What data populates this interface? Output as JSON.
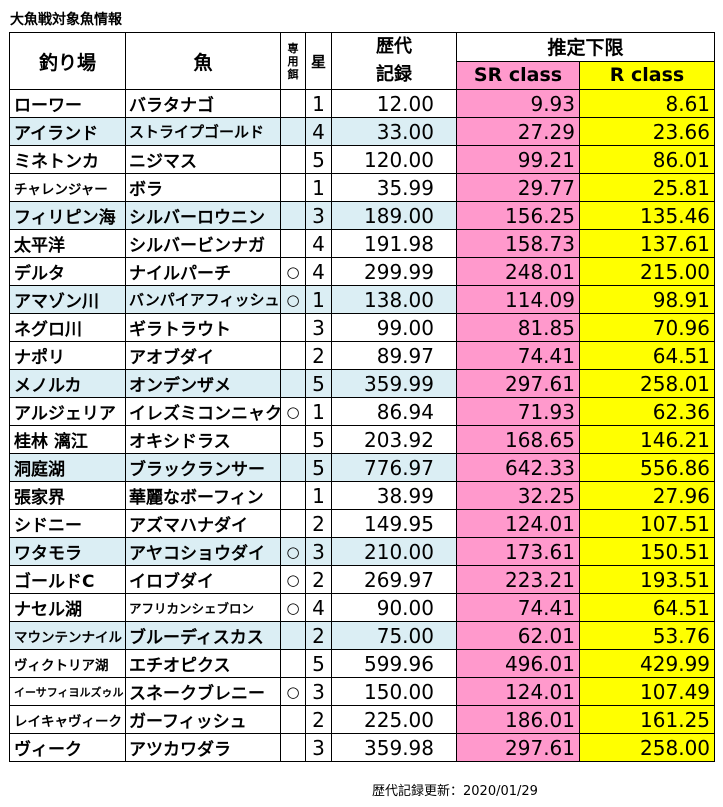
{
  "title": "大魚戦対象魚情報",
  "headers": {
    "place": "釣り場",
    "fish": "魚",
    "bait": "専用餌",
    "star": "星",
    "record_line1": "歴代",
    "record_line2": "記録",
    "estimate": "推定下限",
    "sr": "SR class",
    "r": "R class"
  },
  "rows": [
    {
      "place": "ローワー",
      "fish": "バラタナゴ",
      "bait": "",
      "star": "1",
      "record": "12.00",
      "sr": "9.93",
      "r": "8.61"
    },
    {
      "place": "アイランド",
      "fish": "ストライプゴールド",
      "bait": "",
      "star": "4",
      "record": "33.00",
      "sr": "27.29",
      "r": "23.66"
    },
    {
      "place": "ミネトンカ",
      "fish": "ニジマス",
      "bait": "",
      "star": "5",
      "record": "120.00",
      "sr": "99.21",
      "r": "86.01"
    },
    {
      "place": "チャレンジャー",
      "fish": "ボラ",
      "bait": "",
      "star": "1",
      "record": "35.99",
      "sr": "29.77",
      "r": "25.81"
    },
    {
      "place": "フィリピン海",
      "fish": "シルバーロウニン",
      "bait": "",
      "star": "3",
      "record": "189.00",
      "sr": "156.25",
      "r": "135.46"
    },
    {
      "place": "太平洋",
      "fish": "シルバービンナガ",
      "bait": "",
      "star": "4",
      "record": "191.98",
      "sr": "158.73",
      "r": "137.61"
    },
    {
      "place": "デルタ",
      "fish": "ナイルパーチ",
      "bait": "○",
      "star": "4",
      "record": "299.99",
      "sr": "248.01",
      "r": "215.00"
    },
    {
      "place": "アマゾン川",
      "fish": "バンパイアフィッシュ",
      "bait": "○",
      "star": "1",
      "record": "138.00",
      "sr": "114.09",
      "r": "98.91"
    },
    {
      "place": "ネグロ川",
      "fish": "ギラトラウト",
      "bait": "",
      "star": "3",
      "record": "99.00",
      "sr": "81.85",
      "r": "70.96"
    },
    {
      "place": "ナポリ",
      "fish": "アオブダイ",
      "bait": "",
      "star": "2",
      "record": "89.97",
      "sr": "74.41",
      "r": "64.51"
    },
    {
      "place": "メノルカ",
      "fish": "オンデンザメ",
      "bait": "",
      "star": "5",
      "record": "359.99",
      "sr": "297.61",
      "r": "258.01"
    },
    {
      "place": "アルジェリア",
      "fish": "イレズミコンニャク",
      "bait": "○",
      "star": "1",
      "record": "86.94",
      "sr": "71.93",
      "r": "62.36"
    },
    {
      "place": "桂林 漓江",
      "fish": "オキシドラス",
      "bait": "",
      "star": "5",
      "record": "203.92",
      "sr": "168.65",
      "r": "146.21"
    },
    {
      "place": "洞庭湖",
      "fish": "ブラックランサー",
      "bait": "",
      "star": "5",
      "record": "776.97",
      "sr": "642.33",
      "r": "556.86"
    },
    {
      "place": "張家界",
      "fish": "華麗なボーフィン",
      "bait": "",
      "star": "1",
      "record": "38.99",
      "sr": "32.25",
      "r": "27.96"
    },
    {
      "place": "シドニー",
      "fish": "アズマハナダイ",
      "bait": "",
      "star": "2",
      "record": "149.95",
      "sr": "124.01",
      "r": "107.51"
    },
    {
      "place": "ワタモラ",
      "fish": "アヤコショウダイ",
      "bait": "○",
      "star": "3",
      "record": "210.00",
      "sr": "173.61",
      "r": "150.51"
    },
    {
      "place": "ゴールドC",
      "fish": "イロブダイ",
      "bait": "○",
      "star": "2",
      "record": "269.97",
      "sr": "223.21",
      "r": "193.51"
    },
    {
      "place": "ナセル湖",
      "fish": "アフリカンシェブロン",
      "bait": "○",
      "star": "4",
      "record": "90.00",
      "sr": "74.41",
      "r": "64.51"
    },
    {
      "place": "マウンテンナイル",
      "fish": "ブルーディスカス",
      "bait": "",
      "star": "2",
      "record": "75.00",
      "sr": "62.01",
      "r": "53.76"
    },
    {
      "place": "ヴィクトリア湖",
      "fish": "エチオピクス",
      "bait": "",
      "star": "5",
      "record": "599.96",
      "sr": "496.01",
      "r": "429.99"
    },
    {
      "place": "イーサフィヨルズゥル",
      "fish": "スネークブレニー",
      "bait": "○",
      "star": "3",
      "record": "150.00",
      "sr": "124.01",
      "r": "107.49"
    },
    {
      "place": "レイキャヴィーク",
      "fish": "ガーフィッシュ",
      "bait": "",
      "star": "2",
      "record": "225.00",
      "sr": "186.01",
      "r": "161.25"
    },
    {
      "place": "ヴィーク",
      "fish": "アツカワダラ",
      "bait": "",
      "star": "3",
      "record": "359.98",
      "sr": "297.61",
      "r": "258.00"
    }
  ],
  "row_styles": [
    "",
    "alt",
    "",
    "",
    "alt",
    "",
    "",
    "alt",
    "",
    "",
    "alt",
    "",
    "",
    "alt",
    "",
    "",
    "alt",
    "",
    "",
    "alt",
    "",
    "",
    "",
    ""
  ],
  "place_sizes": [
    "",
    "",
    "",
    "sm",
    "",
    "",
    "",
    "",
    "",
    "",
    "",
    "",
    "",
    "",
    "",
    "",
    "",
    "",
    "",
    "sm",
    "sm",
    "xs",
    "sm",
    ""
  ],
  "fish_sizes": [
    "",
    "sm",
    "",
    "",
    "",
    "",
    "",
    "sm",
    "",
    "",
    "",
    "",
    "",
    "",
    "",
    "",
    "",
    "",
    "xs",
    "",
    "",
    "",
    "",
    ""
  ],
  "footer": "歴代記録更新：2020/01/29",
  "colors": {
    "sr_bg": "#ff99cc",
    "r_bg": "#ffff00",
    "alt_row_bg": "#dbeef4"
  }
}
